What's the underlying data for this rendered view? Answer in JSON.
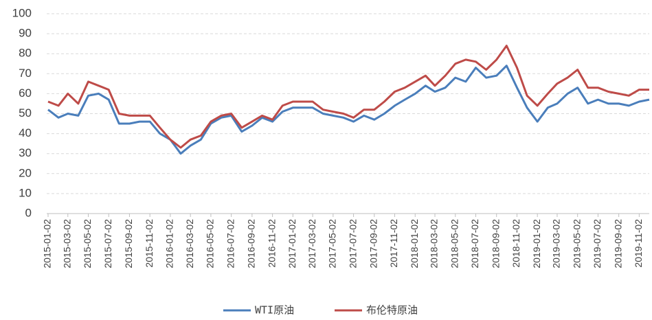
{
  "chart_data": {
    "type": "line",
    "x": [
      "2015-01-02",
      "2015-02-02",
      "2015-03-02",
      "2015-04-02",
      "2015-05-02",
      "2015-06-02",
      "2015-07-02",
      "2015-08-02",
      "2015-09-02",
      "2015-10-02",
      "2015-11-02",
      "2015-12-02",
      "2016-01-02",
      "2016-02-02",
      "2016-03-02",
      "2016-04-02",
      "2016-05-02",
      "2016-06-02",
      "2016-07-02",
      "2016-08-02",
      "2016-09-02",
      "2016-10-02",
      "2016-11-02",
      "2016-12-02",
      "2017-01-02",
      "2017-02-02",
      "2017-03-02",
      "2017-04-02",
      "2017-05-02",
      "2017-06-02",
      "2017-07-02",
      "2017-08-02",
      "2017-09-02",
      "2017-10-02",
      "2017-11-02",
      "2017-12-02",
      "2018-01-02",
      "2018-02-02",
      "2018-03-02",
      "2018-04-02",
      "2018-05-02",
      "2018-06-02",
      "2018-07-02",
      "2018-08-02",
      "2018-09-02",
      "2018-10-02",
      "2018-11-02",
      "2018-12-02",
      "2019-01-02",
      "2019-02-02",
      "2019-03-02",
      "2019-04-02",
      "2019-05-02",
      "2019-06-02",
      "2019-07-02",
      "2019-08-02",
      "2019-09-02",
      "2019-10-02",
      "2019-11-02",
      "2019-12-02"
    ],
    "series": [
      {
        "name": "WTI原油",
        "color": "#4a7ebb",
        "values": [
          52,
          48,
          50,
          49,
          59,
          60,
          57,
          45,
          45,
          46,
          46,
          40,
          37,
          30,
          34,
          37,
          45,
          48,
          49,
          41,
          44,
          48,
          46,
          51,
          53,
          53,
          53,
          50,
          49,
          48,
          46,
          49,
          47,
          50,
          54,
          57,
          60,
          64,
          61,
          63,
          68,
          66,
          73,
          68,
          69,
          74,
          63,
          53,
          46,
          53,
          55,
          60,
          63,
          55,
          57,
          55,
          55,
          54,
          56,
          57
        ]
      },
      {
        "name": "布伦特原油",
        "color": "#be4b48",
        "values": [
          56,
          54,
          60,
          55,
          66,
          64,
          62,
          50,
          49,
          49,
          49,
          43,
          37,
          33,
          37,
          39,
          46,
          49,
          50,
          43,
          46,
          49,
          47,
          54,
          56,
          56,
          56,
          52,
          51,
          50,
          48,
          52,
          52,
          56,
          61,
          63,
          66,
          69,
          64,
          69,
          75,
          77,
          76,
          72,
          77,
          84,
          73,
          59,
          54,
          60,
          65,
          68,
          72,
          63,
          63,
          61,
          60,
          59,
          62,
          62
        ]
      }
    ],
    "xlim": [
      "2015-01-02",
      "2019-12-02"
    ],
    "xticks": [
      "2015-01-02",
      "2015-03-02",
      "2015-05-02",
      "2015-07-02",
      "2015-09-02",
      "2015-11-02",
      "2016-01-02",
      "2016-03-02",
      "2016-05-02",
      "2016-07-02",
      "2016-09-02",
      "2016-11-02",
      "2017-01-02",
      "2017-03-02",
      "2017-05-02",
      "2017-07-02",
      "2017-09-02",
      "2017-11-02",
      "2018-01-02",
      "2018-03-02",
      "2018-05-02",
      "2018-07-02",
      "2018-09-02",
      "2018-11-02",
      "2019-01-02",
      "2019-03-02",
      "2019-05-02",
      "2019-07-02",
      "2019-09-02",
      "2019-11-02"
    ],
    "ylim": [
      0,
      100
    ],
    "yticks": [
      0,
      10,
      20,
      30,
      40,
      50,
      60,
      70,
      80,
      90,
      100
    ],
    "grid": true,
    "legend": "bottom"
  }
}
